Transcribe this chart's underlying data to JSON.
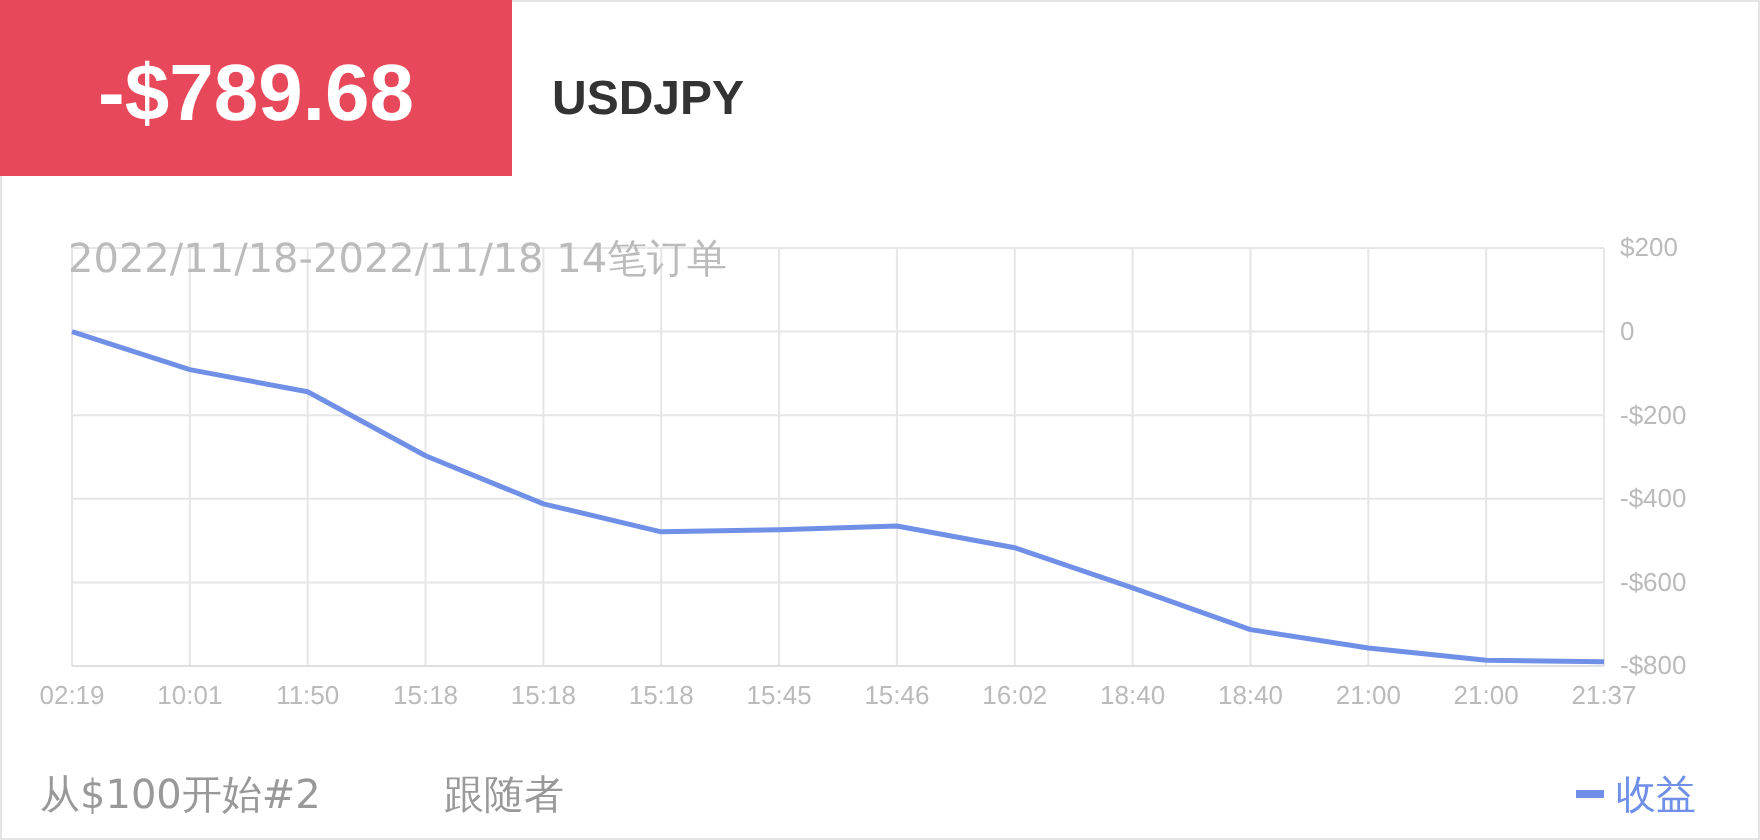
{
  "chart_data": {
    "type": "line",
    "title": "-$789.68",
    "subtitle": "USDJPY",
    "categories": [
      "02:19",
      "10:01",
      "11:50",
      "15:18",
      "15:18",
      "15:18",
      "15:45",
      "15:46",
      "16:02",
      "18:40",
      "18:40",
      "21:00",
      "21:00",
      "21:37"
    ],
    "series": [
      {
        "name": "收益",
        "color": "#7090e8",
        "values": [
          0,
          -91,
          -144,
          -297,
          -412,
          -479,
          -474,
          -465,
          -517,
          -613,
          -713,
          -757,
          -786,
          -790
        ]
      }
    ],
    "ylim": [
      -800,
      200
    ],
    "yticks": [
      {
        "value": 200,
        "label": "$200"
      },
      0,
      {
        "value": -200,
        "label": "-$200"
      },
      {
        "value": -400,
        "label": "-$400"
      },
      {
        "value": -600,
        "label": "-$600"
      },
      {
        "value": -800,
        "label": "-$800"
      }
    ],
    "grid": true,
    "legend": "bottom right",
    "marker": "none",
    "line_style": "solid",
    "annotations": [
      "2022/11/18-2022/11/18 14笔订单",
      "从$100开始#2",
      "跟随者"
    ]
  }
}
